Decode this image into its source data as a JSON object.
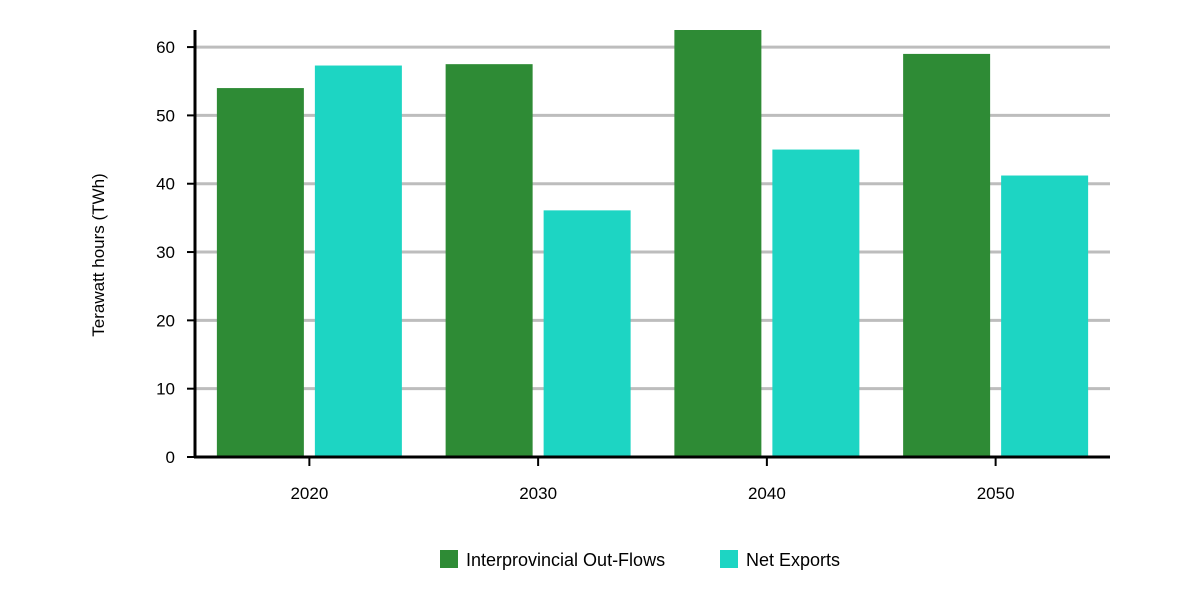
{
  "chart_data": {
    "type": "bar",
    "title": "",
    "xlabel": "",
    "ylabel": "Terawatt hours (TWh)",
    "categories": [
      "2020",
      "2030",
      "2040",
      "2050"
    ],
    "ylim": [
      0,
      62.5
    ],
    "yticks": [
      0,
      10,
      20,
      30,
      40,
      50,
      60
    ],
    "grid": true,
    "legend_position": "bottom-center",
    "series": [
      {
        "name": "Interprovincial Out-Flows",
        "color": "#2e8b35",
        "values": [
          54.0,
          57.5,
          62.5,
          59.0
        ]
      },
      {
        "name": "Net Exports",
        "color": "#1dd5c3",
        "values": [
          57.3,
          36.1,
          45.0,
          41.2
        ]
      }
    ]
  }
}
